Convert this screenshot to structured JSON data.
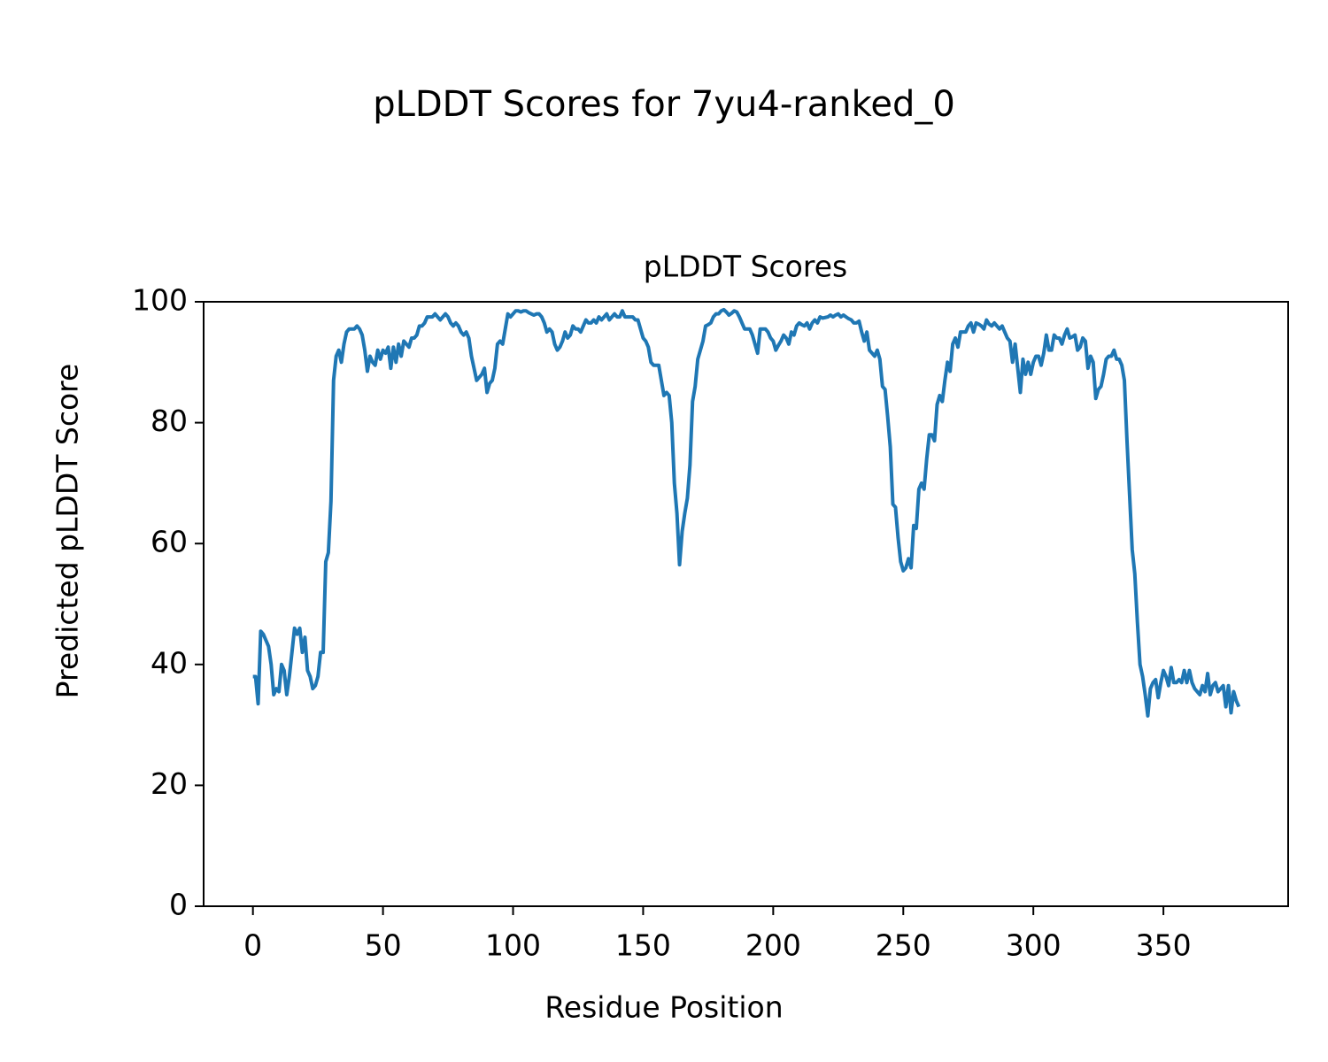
{
  "chart_data": {
    "type": "line",
    "title": "pLDDT Scores for 7yu4-ranked_0",
    "subtitle": "pLDDT Scores",
    "x_label": "Residue Position",
    "y_label": "Predicted pLDDT Score",
    "color": "#1f77b4",
    "xlim": [
      -18.95,
      397.95
    ],
    "ylim": [
      0,
      100
    ],
    "xticks": [
      0,
      50,
      100,
      150,
      200,
      250,
      300,
      350
    ],
    "yticks": [
      0,
      20,
      40,
      60,
      80,
      100
    ],
    "grid": false,
    "x": [
      0,
      1,
      2,
      3,
      4,
      5,
      6,
      7,
      8,
      9,
      10,
      11,
      12,
      13,
      14,
      15,
      16,
      17,
      18,
      19,
      20,
      21,
      22,
      23,
      24,
      25,
      26,
      27,
      28,
      29,
      30,
      31,
      32,
      33,
      34,
      35,
      36,
      37,
      38,
      39,
      40,
      41,
      42,
      43,
      44,
      45,
      46,
      47,
      48,
      49,
      50,
      51,
      52,
      53,
      54,
      55,
      56,
      57,
      58,
      59,
      60,
      61,
      62,
      63,
      64,
      65,
      66,
      67,
      68,
      69,
      70,
      71,
      72,
      73,
      74,
      75,
      76,
      77,
      78,
      79,
      80,
      81,
      82,
      83,
      84,
      85,
      86,
      87,
      88,
      89,
      90,
      91,
      92,
      93,
      94,
      95,
      96,
      97,
      98,
      99,
      100,
      101,
      102,
      103,
      104,
      105,
      106,
      107,
      108,
      109,
      110,
      111,
      112,
      113,
      114,
      115,
      116,
      117,
      118,
      119,
      120,
      121,
      122,
      123,
      124,
      125,
      126,
      127,
      128,
      129,
      130,
      131,
      132,
      133,
      134,
      135,
      136,
      137,
      138,
      139,
      140,
      141,
      142,
      143,
      144,
      145,
      146,
      147,
      148,
      149,
      150,
      151,
      152,
      153,
      154,
      155,
      156,
      157,
      158,
      159,
      160,
      161,
      162,
      163,
      164,
      165,
      166,
      167,
      168,
      169,
      170,
      171,
      172,
      173,
      174,
      175,
      176,
      177,
      178,
      179,
      180,
      181,
      182,
      183,
      184,
      185,
      186,
      187,
      188,
      189,
      190,
      191,
      192,
      193,
      194,
      195,
      196,
      197,
      198,
      199,
      200,
      201,
      202,
      203,
      204,
      205,
      206,
      207,
      208,
      209,
      210,
      211,
      212,
      213,
      214,
      215,
      216,
      217,
      218,
      219,
      220,
      221,
      222,
      223,
      224,
      225,
      226,
      227,
      228,
      229,
      230,
      231,
      232,
      233,
      234,
      235,
      236,
      237,
      238,
      239,
      240,
      241,
      242,
      243,
      244,
      245,
      246,
      247,
      248,
      249,
      250,
      251,
      252,
      253,
      254,
      255,
      256,
      257,
      258,
      259,
      260,
      261,
      262,
      263,
      264,
      265,
      266,
      267,
      268,
      269,
      270,
      271,
      272,
      273,
      274,
      275,
      276,
      277,
      278,
      279,
      280,
      281,
      282,
      283,
      284,
      285,
      286,
      287,
      288,
      289,
      290,
      291,
      292,
      293,
      294,
      295,
      296,
      297,
      298,
      299,
      300,
      301,
      302,
      303,
      304,
      305,
      306,
      307,
      308,
      309,
      310,
      311,
      312,
      313,
      314,
      315,
      316,
      317,
      318,
      319,
      320,
      321,
      322,
      323,
      324,
      325,
      326,
      327,
      328,
      329,
      330,
      331,
      332,
      333,
      334,
      335,
      336,
      337,
      338,
      339,
      340,
      341,
      342,
      343,
      344,
      345,
      346,
      347,
      348,
      349,
      350,
      351,
      352,
      353,
      354,
      355,
      356,
      357,
      358,
      359,
      360,
      361,
      362,
      363,
      364,
      365,
      366,
      367,
      368,
      369,
      370,
      371,
      372,
      373,
      374,
      375,
      376,
      377,
      378,
      379
    ],
    "values": [
      38,
      38,
      33.5,
      45.5,
      45,
      44,
      43,
      40,
      35,
      36,
      35.5,
      40,
      39,
      35,
      38,
      42,
      46,
      45,
      46,
      42,
      44.5,
      39,
      38,
      36,
      36.5,
      38,
      42,
      42,
      57,
      58.5,
      67,
      87,
      91,
      92,
      90,
      93,
      95,
      95.5,
      95.5,
      95.5,
      96,
      95.5,
      94.5,
      92,
      88.5,
      91,
      90,
      89.5,
      92,
      90.5,
      92,
      91.5,
      92.5,
      89,
      92.5,
      90,
      93,
      91,
      93.5,
      93,
      92.5,
      94,
      94,
      94.5,
      96,
      96,
      96.5,
      97.5,
      97.5,
      97.5,
      98,
      97.5,
      97,
      97.5,
      98,
      97.5,
      96.5,
      96,
      96.5,
      96,
      95,
      94.5,
      95,
      94,
      91,
      89,
      87,
      87.5,
      88,
      89,
      85,
      86.5,
      87,
      89,
      93,
      93.5,
      93,
      95.5,
      98,
      97.5,
      98,
      98.5,
      98.5,
      98.3,
      98.5,
      98.5,
      98.2,
      98,
      97.8,
      98,
      98,
      97.5,
      96.5,
      95,
      95.5,
      95,
      93,
      92,
      92.5,
      93.5,
      95,
      94,
      94.5,
      96,
      95.5,
      95.5,
      95,
      96,
      97,
      96.5,
      96.5,
      97,
      96.5,
      97.5,
      97,
      97.5,
      98,
      97,
      97.5,
      98,
      97.5,
      97.5,
      98.5,
      97.5,
      97.5,
      97.5,
      97.5,
      97,
      97,
      95.5,
      94,
      93.5,
      92.5,
      90,
      89.5,
      89.5,
      89.5,
      87,
      84.5,
      85,
      84.5,
      80,
      70,
      65,
      56.5,
      62,
      65,
      67.5,
      73,
      83.5,
      86,
      90.5,
      92,
      93.5,
      96,
      96.2,
      96.5,
      97.5,
      98,
      98,
      98.5,
      98.7,
      98.3,
      97.8,
      98.1,
      98.5,
      98.3,
      97.5,
      96.5,
      95.5,
      95.5,
      95.5,
      94.5,
      93,
      91.5,
      95.5,
      95.5,
      95.5,
      95,
      94,
      93.5,
      92,
      92.8,
      93.5,
      94.5,
      94,
      93,
      95,
      94.5,
      96,
      96.5,
      96.2,
      96,
      96.5,
      95.5,
      96.5,
      97,
      96.5,
      97.5,
      97.3,
      97.4,
      97.5,
      97.8,
      97.5,
      97.8,
      98,
      97.5,
      97.8,
      97.5,
      97.2,
      97,
      96.5,
      96.5,
      96.8,
      95,
      93.5,
      95,
      92,
      91.5,
      91,
      92,
      90.5,
      86,
      85.5,
      81,
      76,
      66.5,
      66,
      61,
      57,
      55.5,
      56,
      57.5,
      56,
      63,
      62.5,
      69,
      70,
      69,
      74,
      78,
      78,
      77,
      83,
      84.5,
      83.5,
      87,
      90,
      88.5,
      93,
      94,
      92.5,
      95,
      95,
      95,
      96,
      96.5,
      95,
      96.5,
      96.3,
      96,
      95.5,
      97,
      96.3,
      96,
      96.5,
      96,
      95.5,
      96,
      95,
      94,
      93.5,
      90,
      93,
      89,
      85,
      90.5,
      88,
      90,
      88,
      90,
      91,
      91,
      89.5,
      91.5,
      94.5,
      92,
      92,
      94.5,
      94,
      94,
      93,
      94.5,
      95.5,
      94,
      94.2,
      94.5,
      92,
      92.5,
      94,
      93.5,
      89,
      91,
      90,
      84,
      85.5,
      86,
      88,
      90.5,
      91,
      91,
      92,
      90.5,
      90.5,
      89.5,
      87,
      77,
      68,
      59,
      55,
      47,
      40,
      38,
      35,
      31.5,
      36,
      37,
      37.5,
      34.5,
      37,
      39,
      38,
      36.5,
      39.5,
      37,
      37,
      37.5,
      37,
      39,
      37,
      39,
      37,
      36,
      35.5,
      35,
      36.5,
      35.5,
      38.5,
      35,
      36.5,
      37,
      35.5,
      36,
      36.5,
      33,
      36.5,
      32,
      35.5,
      34,
      33
    ]
  }
}
